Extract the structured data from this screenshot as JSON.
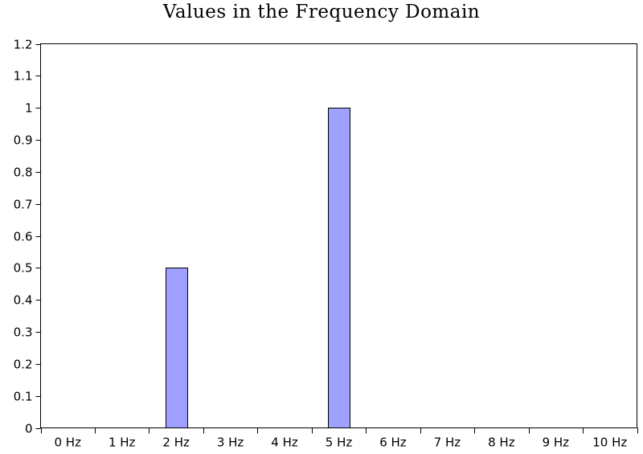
{
  "chart_data": {
    "type": "bar",
    "title": "Values in the Frequency Domain",
    "xlabel": "",
    "ylabel": "",
    "categories": [
      "0 Hz",
      "1 Hz",
      "2 Hz",
      "3 Hz",
      "4 Hz",
      "5 Hz",
      "6 Hz",
      "7 Hz",
      "8 Hz",
      "9 Hz",
      "10 Hz"
    ],
    "values": [
      0,
      0,
      0.5,
      0,
      0,
      1,
      0,
      0,
      0,
      0,
      0
    ],
    "ylim": [
      0,
      1.2
    ],
    "yticks": [
      "0",
      "0.1",
      "0.2",
      "0.3",
      "0.4",
      "0.5",
      "0.6",
      "0.7",
      "0.8",
      "0.9",
      "1",
      "1.1",
      "1.2"
    ],
    "grid": false,
    "legend": "none",
    "colors": {
      "bar_fill": "#a0a0ff",
      "bar_stroke": "#000000",
      "axis": "#000000"
    }
  }
}
